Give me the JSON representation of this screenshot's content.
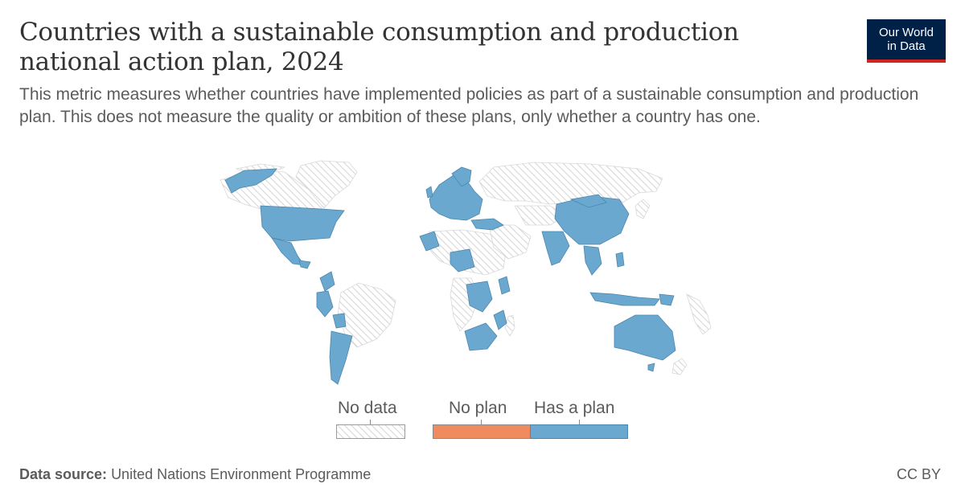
{
  "header": {
    "title": "Countries with a sustainable consumption and production national action plan, 2024",
    "subtitle": "This metric measures whether countries have implemented policies as part of a sustainable consumption and production plan. This does not measure the quality or ambition of these plans, only whether a country has one.",
    "logo_line1": "Our World",
    "logo_line2": "in Data"
  },
  "legend": {
    "items": [
      {
        "label": "No data",
        "color": "hatched"
      },
      {
        "label": "No plan",
        "color": "#f08b5f"
      },
      {
        "label": "Has a plan",
        "color": "#6aa8d0"
      }
    ]
  },
  "colors": {
    "has_plan": "#6aa8d0",
    "no_plan": "#f08b5f",
    "no_data_hatch": "#cfcfcf",
    "logo_bg": "#002147",
    "logo_accent": "#ce261e"
  },
  "footer": {
    "source_label": "Data source:",
    "source_value": "United Nations Environment Programme",
    "license": "CC BY"
  }
}
